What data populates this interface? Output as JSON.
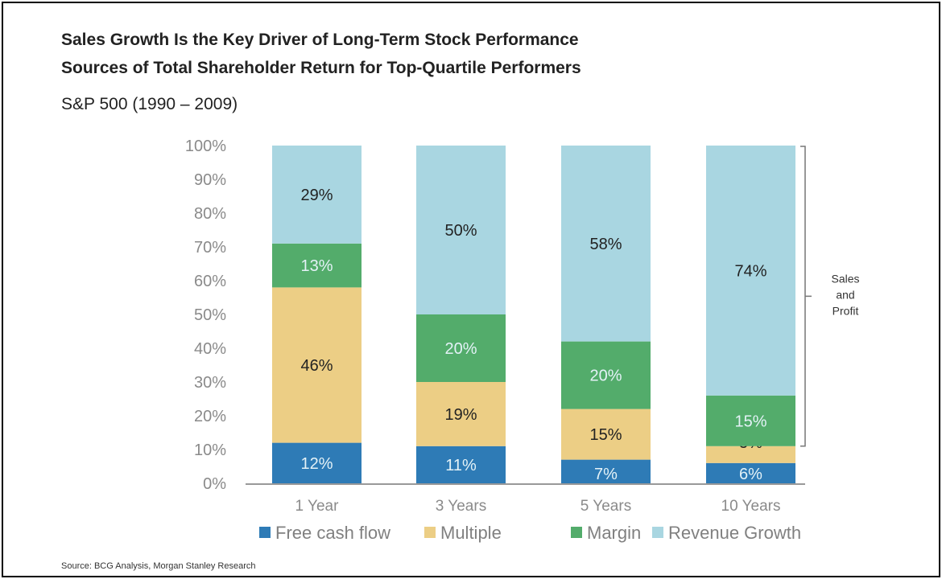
{
  "chart_data": {
    "type": "bar",
    "stacked": true,
    "title": "Sales Growth Is the Key Driver of Long-Term Stock Performance",
    "subtitle": "Sources of Total Shareholder Return for Top-Quartile Performers",
    "note": "S&P 500 (1990 – 2009)",
    "source": "Source: BCG Analysis, Morgan Stanley Research",
    "categories": [
      "1 Year",
      "3 Years",
      "5 Years",
      "10 Years"
    ],
    "series": [
      {
        "name": "Free cash flow",
        "color": "#2e7bb6",
        "label_color": "#e4f2f7",
        "values": [
          12,
          11,
          7,
          6
        ]
      },
      {
        "name": "Multiple",
        "color": "#ecce85",
        "label_color": "#222222",
        "values": [
          46,
          19,
          15,
          5
        ]
      },
      {
        "name": "Margin",
        "color": "#53ac6b",
        "label_color": "#e4f2f7",
        "values": [
          13,
          20,
          20,
          15
        ]
      },
      {
        "name": "Revenue Growth",
        "color": "#a9d6e1",
        "label_color": "#222222",
        "values": [
          29,
          50,
          58,
          74
        ]
      }
    ],
    "ylim": [
      0,
      100
    ],
    "yticks": [
      "0%",
      "10%",
      "20%",
      "30%",
      "40%",
      "50%",
      "60%",
      "70%",
      "80%",
      "90%",
      "100%"
    ],
    "xlabel": "",
    "ylabel": "",
    "grid": false,
    "legend": "bottom",
    "annotation": {
      "lines": [
        "Sales",
        "and",
        "Profit"
      ],
      "spans_series": [
        "Margin",
        "Revenue Growth"
      ],
      "category": "10 Years"
    }
  }
}
